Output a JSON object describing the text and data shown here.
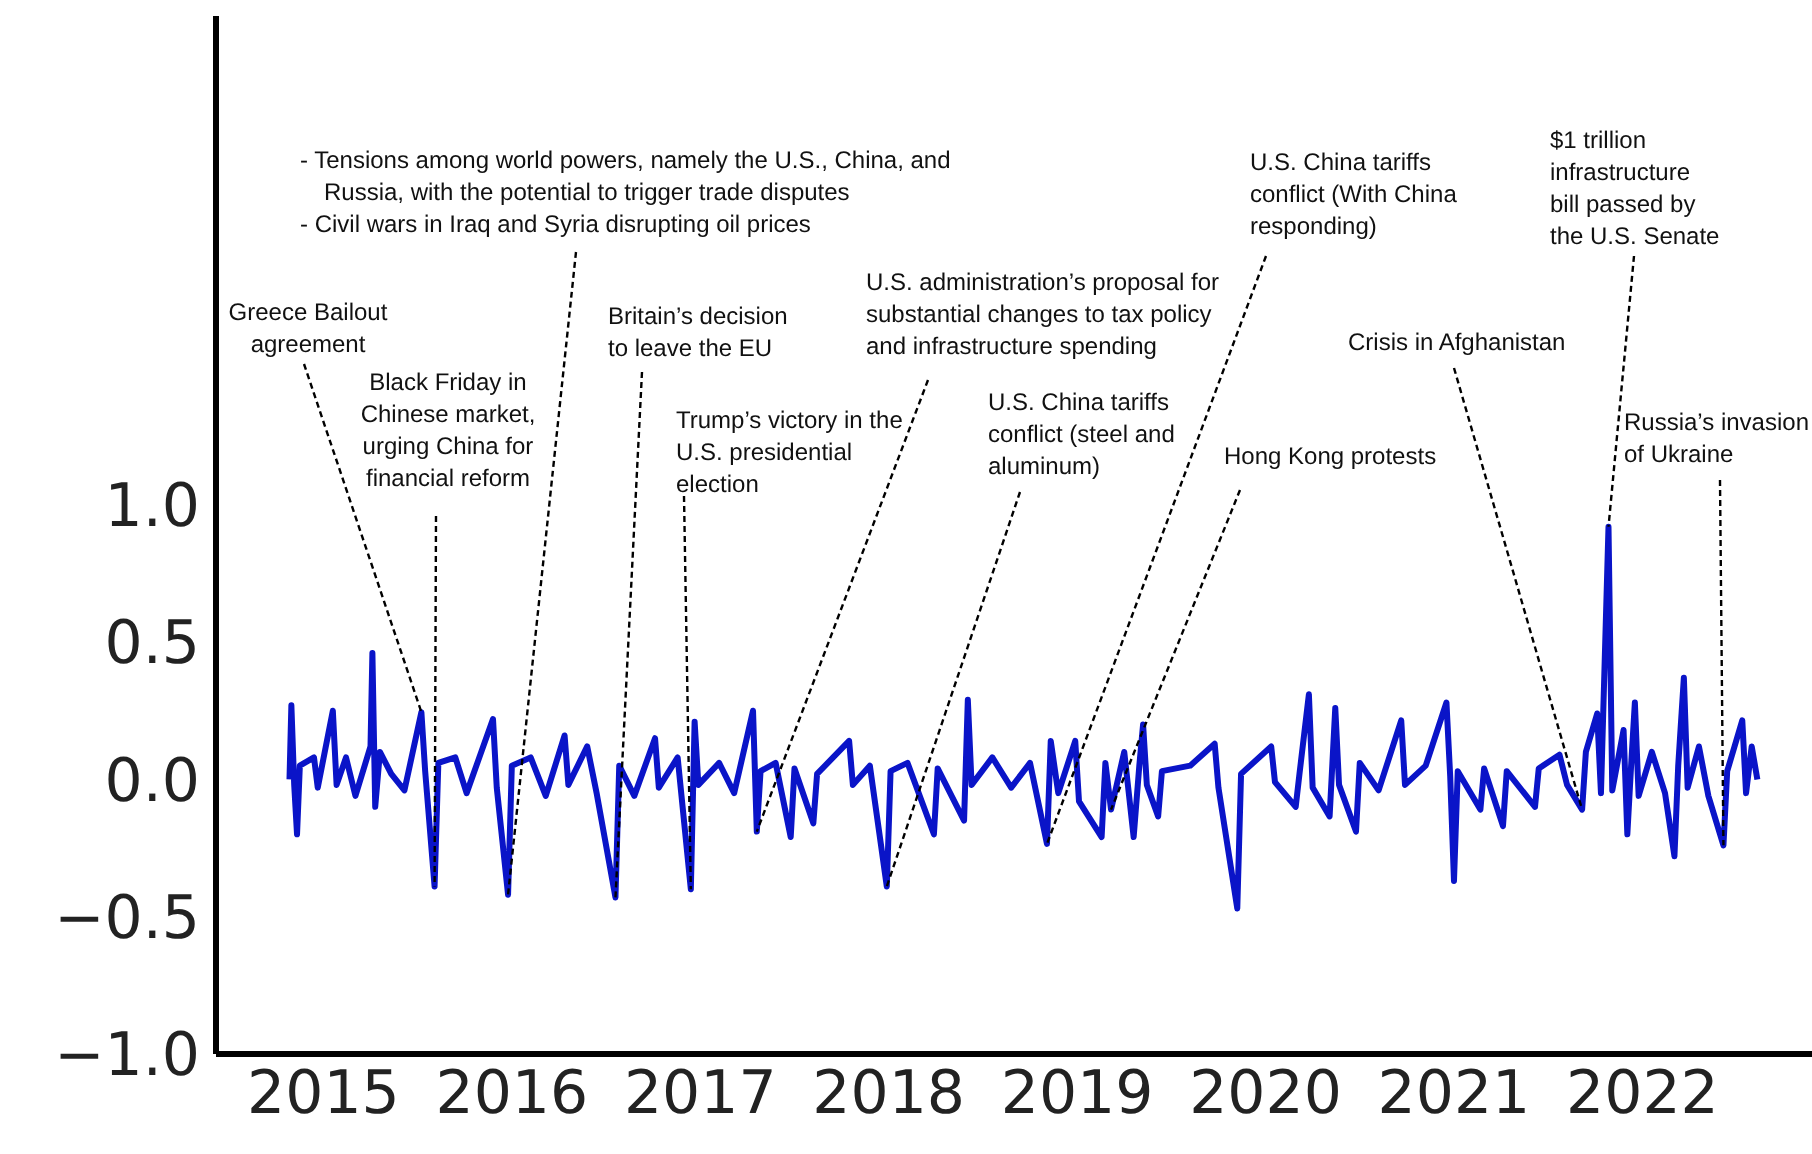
{
  "chart_data": {
    "type": "line",
    "xlim": [
      2014.43,
      2022.9
    ],
    "xticks": [
      2015,
      2016,
      2017,
      2018,
      2019,
      2020,
      2021,
      2022
    ],
    "ylim": [
      -1,
      2.78
    ],
    "yticks": [
      {
        "value": -1,
        "label": "−1.0"
      },
      {
        "value": -0.5,
        "label": "−0.5"
      },
      {
        "value": 0,
        "label": "0.0"
      },
      {
        "value": 0.5,
        "label": "0.5"
      },
      {
        "value": 1,
        "label": "1.0"
      }
    ],
    "series": [
      {
        "color": "#0a14c8",
        "x": [
          2014.82,
          2014.83,
          2014.845,
          2014.86,
          2014.875,
          2014.95,
          2014.97,
          2015.05,
          2015.07,
          2015.12,
          2015.17,
          2015.25,
          2015.26,
          2015.275,
          2015.3,
          2015.36,
          2015.43,
          2015.52,
          2015.54,
          2015.59,
          2015.61,
          2015.7,
          2015.76,
          2015.9,
          2015.92,
          2015.98,
          2016.0,
          2016.1,
          2016.18,
          2016.28,
          2016.3,
          2016.4,
          2016.45,
          2016.55,
          2016.57,
          2016.65,
          2016.76,
          2016.78,
          2016.88,
          2016.95,
          2016.97,
          2016.99,
          2017.1,
          2017.18,
          2017.28,
          2017.3,
          2017.32,
          2017.4,
          2017.48,
          2017.5,
          2017.6,
          2017.62,
          2017.79,
          2017.81,
          2017.9,
          2017.99,
          2018.01,
          2018.1,
          2018.24,
          2018.26,
          2018.4,
          2018.42,
          2018.44,
          2018.55,
          2018.65,
          2018.75,
          2018.84,
          2018.86,
          2018.9,
          2018.99,
          2019.01,
          2019.13,
          2019.15,
          2019.18,
          2019.25,
          2019.3,
          2019.33,
          2019.35,
          2019.37,
          2019.43,
          2019.45,
          2019.6,
          2019.73,
          2019.75,
          2019.85,
          2019.87,
          2020.03,
          2020.05,
          2020.16,
          2020.18,
          2020.23,
          2020.25,
          2020.34,
          2020.37,
          2020.39,
          2020.48,
          2020.5,
          2020.6,
          2020.72,
          2020.74,
          2020.85,
          2020.96,
          2020.98,
          2021.0,
          2021.02,
          2021.14,
          2021.16,
          2021.26,
          2021.28,
          2021.43,
          2021.45,
          2021.56,
          2021.6,
          2021.68,
          2021.7,
          2021.76,
          2021.78,
          2021.82,
          2021.84,
          2021.9,
          2021.92,
          2021.94,
          2021.96,
          2021.98,
          2022.05,
          2022.12,
          2022.17,
          2022.19,
          2022.22,
          2022.24,
          2022.3,
          2022.35,
          2022.43,
          2022.45,
          2022.53,
          2022.55,
          2022.58,
          2022.61
        ],
        "values": [
          0.0,
          0.27,
          -0.02,
          -0.2,
          0.05,
          0.08,
          -0.03,
          0.25,
          -0.02,
          0.08,
          -0.06,
          0.12,
          0.46,
          -0.1,
          0.1,
          0.02,
          -0.04,
          0.245,
          0.03,
          -0.39,
          0.06,
          0.08,
          -0.05,
          0.22,
          -0.03,
          -0.42,
          0.05,
          0.08,
          -0.06,
          0.16,
          -0.02,
          0.12,
          -0.05,
          -0.43,
          0.05,
          -0.06,
          0.15,
          -0.03,
          0.08,
          -0.4,
          0.21,
          -0.02,
          0.06,
          -0.05,
          0.25,
          -0.19,
          0.03,
          0.06,
          -0.21,
          0.04,
          -0.16,
          0.02,
          0.14,
          -0.02,
          0.05,
          -0.39,
          0.03,
          0.06,
          -0.2,
          0.04,
          -0.15,
          0.29,
          -0.02,
          0.08,
          -0.03,
          0.06,
          -0.235,
          0.14,
          -0.05,
          0.14,
          -0.08,
          -0.21,
          0.06,
          -0.11,
          0.1,
          -0.21,
          0.05,
          0.2,
          -0.02,
          -0.135,
          0.03,
          0.05,
          0.13,
          -0.03,
          -0.47,
          0.02,
          0.12,
          -0.01,
          -0.1,
          0.02,
          0.31,
          -0.03,
          -0.135,
          0.26,
          -0.02,
          -0.19,
          0.06,
          -0.04,
          0.215,
          -0.02,
          0.05,
          0.28,
          0.01,
          -0.37,
          0.03,
          -0.11,
          0.04,
          -0.17,
          0.03,
          -0.1,
          0.04,
          0.09,
          -0.02,
          -0.11,
          0.1,
          0.24,
          -0.05,
          0.92,
          -0.04,
          0.18,
          -0.2,
          0.05,
          0.28,
          -0.06,
          0.1,
          -0.05,
          -0.28,
          0.05,
          0.37,
          -0.03,
          0.12,
          -0.06,
          -0.24,
          0.03,
          0.215,
          -0.05,
          0.12,
          0.0
        ]
      }
    ],
    "annotations": [
      {
        "text": "Greece Bailout agreement",
        "x": 2015.52,
        "y": 0.245
      },
      {
        "text": "Black Friday in Chinese market, urging China for financial reform",
        "x": 2015.59,
        "y": -0.39
      },
      "- Tensions among world powers, namely the U.S., China, and Russia, with the potential to trigger trade disputes",
      {
        "text": "- Civil wars in Iraq and Syria disrupting oil prices",
        "x": 2015.98,
        "y": -0.42
      },
      {
        "text": "Britain’s decision to leave the EU",
        "x": 2016.55,
        "y": -0.43
      },
      {
        "text": "Trump’s victory in the U.S. presidential election",
        "x": 2016.95,
        "y": -0.4
      },
      {
        "text": "U.S. administration’s proposal for substantial changes to tax policy and infrastructure spending",
        "x": 2017.3,
        "y": -0.19
      },
      {
        "text": "U.S. China tariffs conflict (steel and aluminum)",
        "x": 2017.99,
        "y": -0.39
      },
      {
        "text": "U.S. China tariffs conflict (With China responding)",
        "x": 2018.84,
        "y": -0.235
      },
      {
        "text": "Hong Kong protests",
        "x": 2019.18,
        "y": -0.11
      },
      {
        "text": "Crisis in Afghanistan",
        "x": 2021.68,
        "y": -0.11
      },
      {
        "text": "$1 trillion infrastructure bill passed by the U.S. Senate",
        "x": 2021.82,
        "y": 0.92
      },
      {
        "text": "Russia’s invasion of Ukraine",
        "x": 2022.43,
        "y": -0.24
      }
    ]
  }
}
